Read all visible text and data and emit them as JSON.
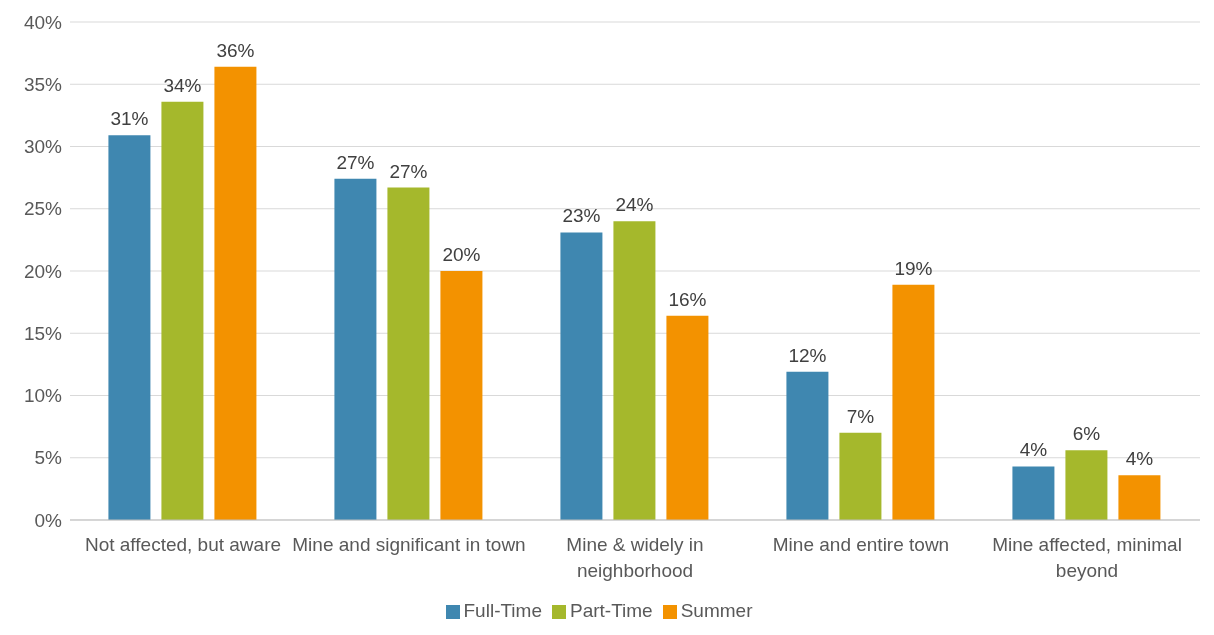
{
  "chart_data": {
    "type": "bar",
    "categories": [
      "Not affected, but aware",
      "Mine and significant in town",
      "Mine & widely in neighborhood",
      "Mine and entire town",
      "Mine affected, minimal beyond"
    ],
    "series": [
      {
        "name": "Full-Time",
        "color": "#3f87b0",
        "values": [
          30.9,
          27.4,
          23.1,
          11.9,
          4.3
        ],
        "value_labels": [
          "31%",
          "27%",
          "23%",
          "12%",
          "4%"
        ]
      },
      {
        "name": "Part-Time",
        "color": "#a5b82c",
        "values": [
          33.6,
          26.7,
          24.0,
          7.0,
          5.6
        ],
        "value_labels": [
          "34%",
          "27%",
          "24%",
          "7%",
          "6%"
        ]
      },
      {
        "name": "Summer",
        "color": "#f39200",
        "values": [
          36.4,
          20.0,
          16.4,
          18.9,
          3.6
        ],
        "value_labels": [
          "36%",
          "20%",
          "16%",
          "19%",
          "4%"
        ]
      }
    ],
    "ylim": [
      0,
      40
    ],
    "yticks": [
      {
        "value": 0,
        "label": "0%"
      },
      {
        "value": 5,
        "label": "5%"
      },
      {
        "value": 10,
        "label": "10%"
      },
      {
        "value": 15,
        "label": "15%"
      },
      {
        "value": 20,
        "label": "20%"
      },
      {
        "value": 25,
        "label": "25%"
      },
      {
        "value": 30,
        "label": "30%"
      },
      {
        "value": 35,
        "label": "35%"
      },
      {
        "value": 40,
        "label": "40%"
      }
    ],
    "grid": "y",
    "legend": "bottom"
  }
}
